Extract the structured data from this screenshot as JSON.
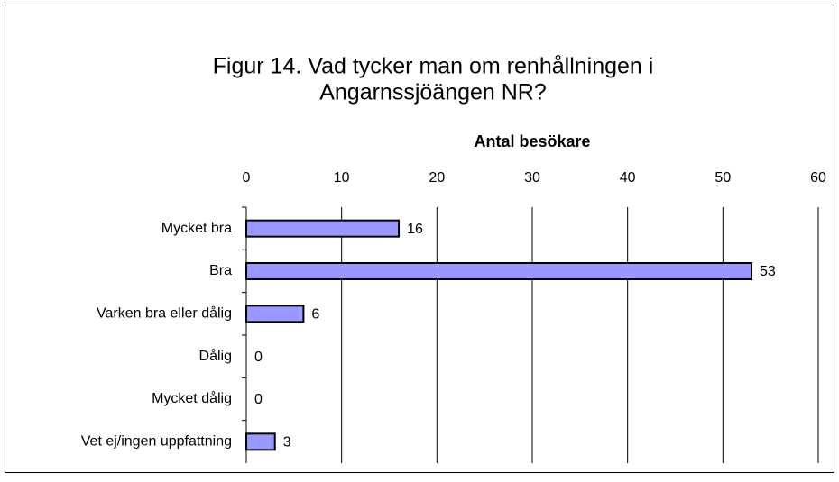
{
  "chart_data": {
    "type": "bar",
    "orientation": "horizontal",
    "title": [
      "Figur 14. Vad tycker man om renhållningen i",
      "Angarnssjöängen NR?"
    ],
    "x_axis_label": "Antal besökare",
    "categories": [
      "Mycket bra",
      "Bra",
      "Varken bra eller dålig",
      "Dålig",
      "Mycket dålig",
      "Vet ej/ingen uppfattning"
    ],
    "values": [
      16,
      53,
      6,
      0,
      0,
      3
    ],
    "color": "#9999ff",
    "xlim": [
      0,
      60
    ],
    "xticks": [
      0,
      10,
      20,
      30,
      40,
      50,
      60
    ],
    "grid": true
  }
}
